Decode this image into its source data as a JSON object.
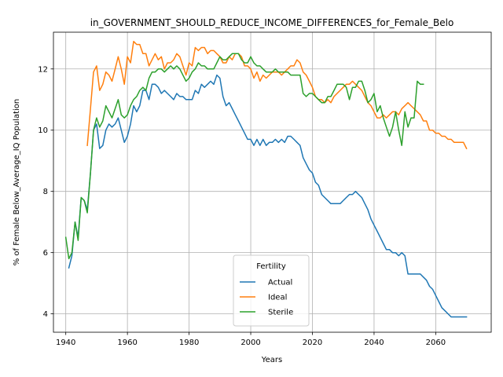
{
  "chart_data": {
    "type": "line",
    "title": "in_GOVERNMENT_SHOULD_REDUCE_INCOME_DIFFERENCES_for_Female_Belo",
    "xlabel": "Years",
    "ylabel": "% of Female Below_Average_IQ Population",
    "xlim": [
      1936,
      2078
    ],
    "ylim": [
      3.4,
      13.2
    ],
    "xticks": [
      1940,
      1960,
      1980,
      2000,
      2020,
      2040,
      2060
    ],
    "yticks": [
      4,
      6,
      8,
      10,
      12
    ],
    "grid": true,
    "legend": {
      "title": "Fertility",
      "placement": "lower-center"
    },
    "series": [
      {
        "name": "Actual",
        "color": "#1f77b4",
        "x": [
          1941,
          1942,
          1943,
          1944,
          1945,
          1946,
          1947,
          1948,
          1949,
          1950,
          1951,
          1952,
          1953,
          1954,
          1955,
          1956,
          1957,
          1958,
          1959,
          1960,
          1961,
          1962,
          1963,
          1964,
          1965,
          1966,
          1967,
          1968,
          1969,
          1970,
          1971,
          1972,
          1973,
          1974,
          1975,
          1976,
          1977,
          1978,
          1979,
          1980,
          1981,
          1982,
          1983,
          1984,
          1985,
          1986,
          1987,
          1988,
          1989,
          1990,
          1991,
          1992,
          1993,
          1994,
          1995,
          1996,
          1997,
          1998,
          1999,
          2000,
          2001,
          2002,
          2003,
          2004,
          2005,
          2006,
          2007,
          2008,
          2009,
          2010,
          2011,
          2012,
          2013,
          2014,
          2015,
          2016,
          2017,
          2018,
          2019,
          2020,
          2021,
          2022,
          2023,
          2024,
          2025,
          2026,
          2027,
          2028,
          2029,
          2030,
          2031,
          2032,
          2033,
          2034,
          2035,
          2036,
          2037,
          2038,
          2039,
          2040,
          2041,
          2042,
          2043,
          2044,
          2045,
          2046,
          2047,
          2048,
          2049,
          2050,
          2051,
          2052,
          2053,
          2054,
          2055,
          2056,
          2057,
          2058,
          2059,
          2060,
          2061,
          2062,
          2063,
          2064,
          2065,
          2066,
          2067,
          2068,
          2069,
          2070
        ],
        "y": [
          5.5,
          5.9,
          7.0,
          6.5,
          7.8,
          7.7,
          7.4,
          8.6,
          10.0,
          10.2,
          9.4,
          9.5,
          10.0,
          10.2,
          10.1,
          10.2,
          10.4,
          10.0,
          9.6,
          9.8,
          10.2,
          10.8,
          10.6,
          10.8,
          11.3,
          11.3,
          11.0,
          11.5,
          11.5,
          11.4,
          11.2,
          11.3,
          11.2,
          11.1,
          11.0,
          11.2,
          11.1,
          11.1,
          11.0,
          11.0,
          11.0,
          11.3,
          11.2,
          11.5,
          11.4,
          11.5,
          11.6,
          11.5,
          11.8,
          11.7,
          11.1,
          10.8,
          10.9,
          10.7,
          10.5,
          10.3,
          10.1,
          9.9,
          9.7,
          9.7,
          9.5,
          9.7,
          9.5,
          9.7,
          9.5,
          9.6,
          9.6,
          9.7,
          9.6,
          9.7,
          9.6,
          9.8,
          9.8,
          9.7,
          9.6,
          9.5,
          9.1,
          8.9,
          8.7,
          8.6,
          8.3,
          8.2,
          7.9,
          7.8,
          7.7,
          7.6,
          7.6,
          7.6,
          7.6,
          7.7,
          7.8,
          7.9,
          7.9,
          8.0,
          7.9,
          7.8,
          7.6,
          7.4,
          7.1,
          6.9,
          6.7,
          6.5,
          6.3,
          6.1,
          6.1,
          6.0,
          6.0,
          5.9,
          6.0,
          5.9,
          5.3,
          5.3,
          5.3,
          5.3,
          5.3,
          5.2,
          5.1,
          4.9,
          4.8,
          4.6,
          4.4,
          4.2,
          4.1,
          4.0,
          3.9,
          3.9,
          3.9,
          3.9,
          3.9,
          3.9
        ]
      },
      {
        "name": "Ideal",
        "color": "#ff7f0e",
        "x": [
          1947,
          1948,
          1949,
          1950,
          1951,
          1952,
          1953,
          1954,
          1955,
          1956,
          1957,
          1958,
          1959,
          1960,
          1961,
          1962,
          1963,
          1964,
          1965,
          1966,
          1967,
          1968,
          1969,
          1970,
          1971,
          1972,
          1973,
          1974,
          1975,
          1976,
          1977,
          1978,
          1979,
          1980,
          1981,
          1982,
          1983,
          1984,
          1985,
          1986,
          1987,
          1988,
          1989,
          1990,
          1991,
          1992,
          1993,
          1994,
          1995,
          1996,
          1997,
          1998,
          1999,
          2000,
          2001,
          2002,
          2003,
          2004,
          2005,
          2006,
          2007,
          2008,
          2009,
          2010,
          2011,
          2012,
          2013,
          2014,
          2015,
          2016,
          2017,
          2018,
          2019,
          2020,
          2021,
          2022,
          2023,
          2024,
          2025,
          2026,
          2027,
          2028,
          2029,
          2030,
          2031,
          2032,
          2033,
          2034,
          2035,
          2036,
          2037,
          2038,
          2039,
          2040,
          2041,
          2042,
          2043,
          2044,
          2045,
          2046,
          2047,
          2048,
          2049,
          2050,
          2051,
          2052,
          2053,
          2054,
          2055,
          2056,
          2057,
          2058,
          2059,
          2060,
          2061,
          2062,
          2063,
          2064,
          2065,
          2066,
          2067,
          2068,
          2069,
          2070
        ],
        "y": [
          9.5,
          10.7,
          11.9,
          12.1,
          11.3,
          11.5,
          11.9,
          11.8,
          11.6,
          12.0,
          12.4,
          12.0,
          11.5,
          12.4,
          12.2,
          12.9,
          12.8,
          12.8,
          12.5,
          12.5,
          12.1,
          12.3,
          12.5,
          12.3,
          12.4,
          12.0,
          12.2,
          12.2,
          12.3,
          12.5,
          12.4,
          12.1,
          11.8,
          12.2,
          12.1,
          12.7,
          12.6,
          12.7,
          12.7,
          12.5,
          12.6,
          12.6,
          12.5,
          12.4,
          12.2,
          12.2,
          12.4,
          12.3,
          12.5,
          12.5,
          12.4,
          12.1,
          12.1,
          12.0,
          11.7,
          11.9,
          11.6,
          11.8,
          11.7,
          11.8,
          11.9,
          11.9,
          11.9,
          11.8,
          11.9,
          12.0,
          12.1,
          12.1,
          12.3,
          12.2,
          11.9,
          11.8,
          11.6,
          11.4,
          11.1,
          11.0,
          11.0,
          10.9,
          11.0,
          10.9,
          11.1,
          11.2,
          11.3,
          11.4,
          11.5,
          11.5,
          11.6,
          11.5,
          11.4,
          11.3,
          11.1,
          10.9,
          10.8,
          10.6,
          10.4,
          10.4,
          10.5,
          10.4,
          10.5,
          10.6,
          10.6,
          10.5,
          10.7,
          10.8,
          10.9,
          10.8,
          10.7,
          10.6,
          10.5,
          10.3,
          10.3,
          10.0,
          10.0,
          9.9,
          9.9,
          9.8,
          9.8,
          9.7,
          9.7,
          9.6,
          9.6,
          9.6,
          9.6,
          9.4
        ]
      },
      {
        "name": "Sterile",
        "color": "#2ca02c",
        "x": [
          1940,
          1941,
          1942,
          1943,
          1944,
          1945,
          1946,
          1947,
          1948,
          1949,
          1950,
          1951,
          1952,
          1953,
          1954,
          1955,
          1956,
          1957,
          1958,
          1959,
          1960,
          1961,
          1962,
          1963,
          1964,
          1965,
          1966,
          1967,
          1968,
          1969,
          1970,
          1971,
          1972,
          1973,
          1974,
          1975,
          1976,
          1977,
          1978,
          1979,
          1980,
          1981,
          1982,
          1983,
          1984,
          1985,
          1986,
          1987,
          1988,
          1989,
          1990,
          1991,
          1992,
          1993,
          1994,
          1995,
          1996,
          1997,
          1998,
          1999,
          2000,
          2001,
          2002,
          2003,
          2004,
          2005,
          2006,
          2007,
          2008,
          2009,
          2010,
          2011,
          2012,
          2013,
          2014,
          2015,
          2016,
          2017,
          2018,
          2019,
          2020,
          2021,
          2022,
          2023,
          2024,
          2025,
          2026,
          2027,
          2028,
          2029,
          2030,
          2031,
          2032,
          2033,
          2034,
          2035,
          2036,
          2037,
          2038,
          2039,
          2040,
          2041,
          2042,
          2043,
          2044,
          2045,
          2046,
          2047,
          2048,
          2049,
          2050,
          2051,
          2052,
          2053,
          2054,
          2055,
          2056
        ],
        "y": [
          6.5,
          5.8,
          6.0,
          7.0,
          6.4,
          7.8,
          7.7,
          7.3,
          8.6,
          10.0,
          10.4,
          10.1,
          10.3,
          10.8,
          10.6,
          10.4,
          10.7,
          11.0,
          10.5,
          10.4,
          10.5,
          10.8,
          11.0,
          11.1,
          11.3,
          11.4,
          11.3,
          11.7,
          11.9,
          11.9,
          12.0,
          12.0,
          11.9,
          12.0,
          12.1,
          12.0,
          12.1,
          12.0,
          11.8,
          11.6,
          11.7,
          11.9,
          12.0,
          12.2,
          12.1,
          12.1,
          12.0,
          12.0,
          12.0,
          12.2,
          12.4,
          12.3,
          12.3,
          12.4,
          12.5,
          12.5,
          12.5,
          12.3,
          12.2,
          12.2,
          12.4,
          12.2,
          12.1,
          12.1,
          12.0,
          11.9,
          11.9,
          11.9,
          12.0,
          11.9,
          11.9,
          11.9,
          11.9,
          11.8,
          11.8,
          11.8,
          11.8,
          11.2,
          11.1,
          11.2,
          11.2,
          11.1,
          11.0,
          10.9,
          10.9,
          11.1,
          11.1,
          11.3,
          11.5,
          11.5,
          11.5,
          11.4,
          11.0,
          11.4,
          11.4,
          11.6,
          11.6,
          11.3,
          10.9,
          11.0,
          11.2,
          10.6,
          10.8,
          10.4,
          10.1,
          9.8,
          10.1,
          10.6,
          10.0,
          9.5,
          10.6,
          10.1,
          10.4,
          10.4,
          11.6,
          11.5,
          11.5
        ]
      }
    ]
  }
}
